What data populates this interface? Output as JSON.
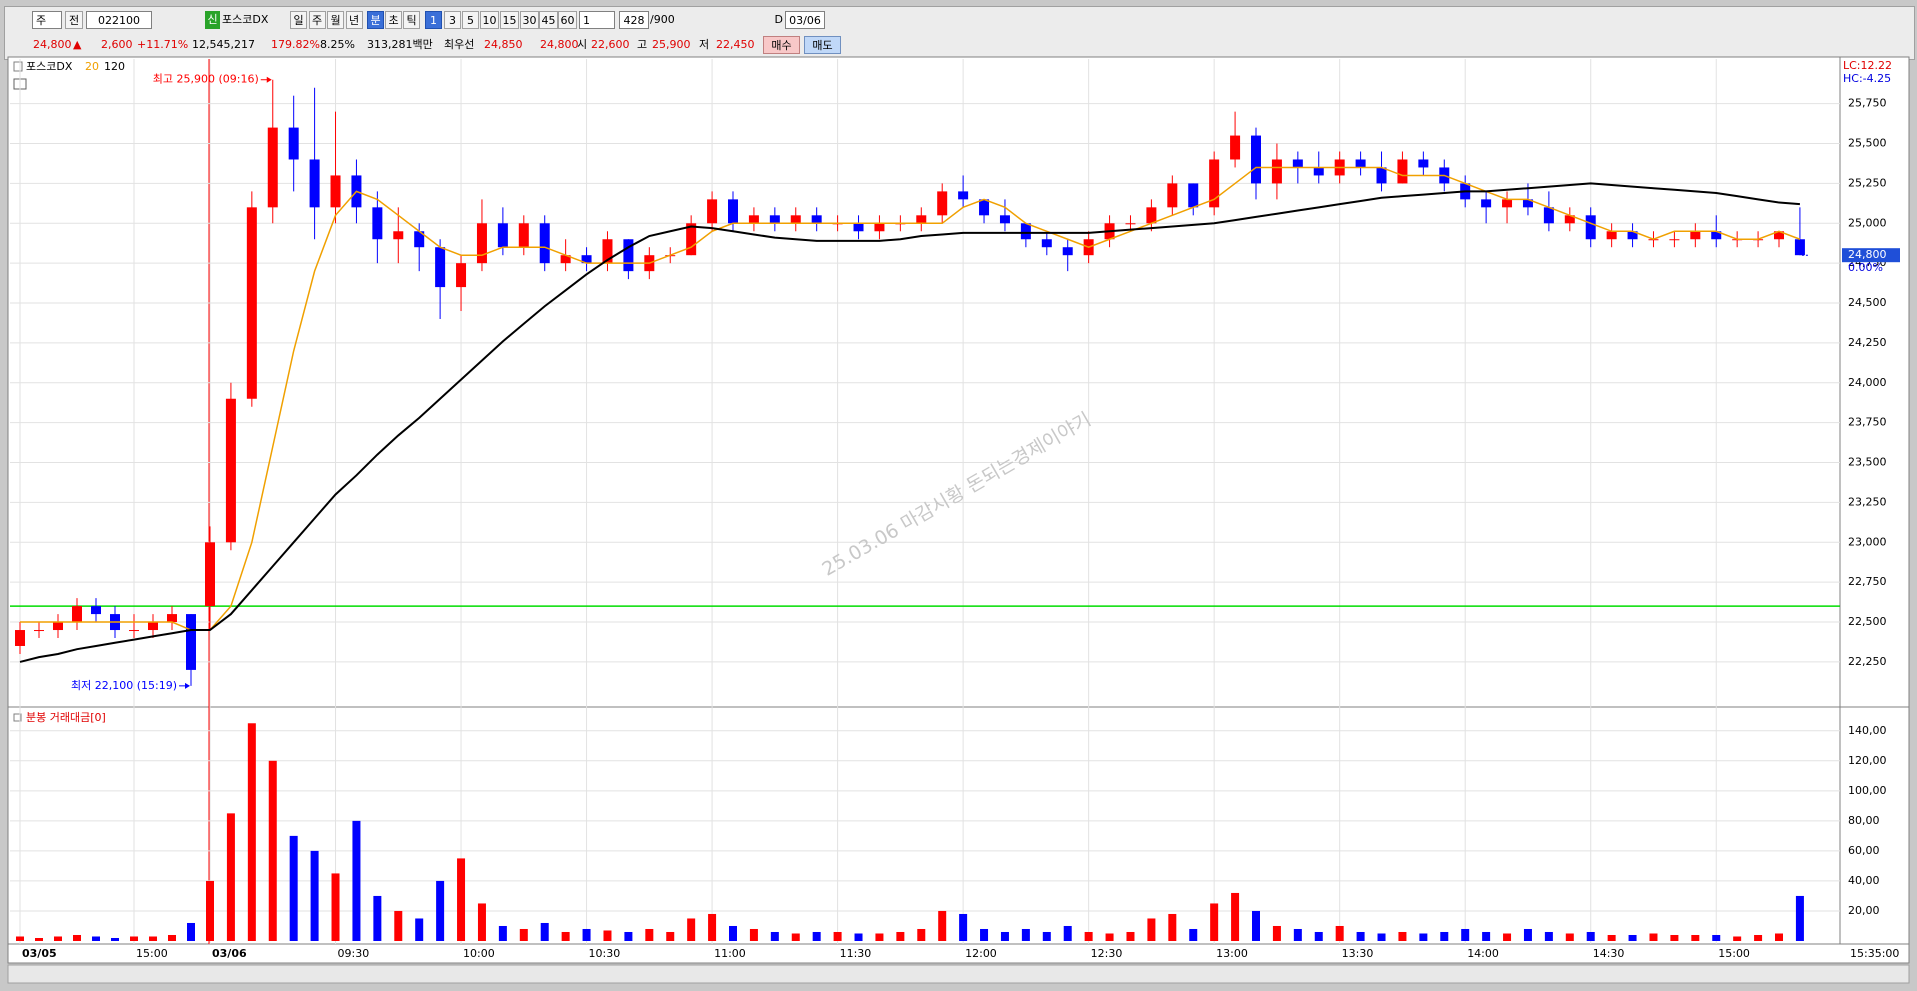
{
  "toolbar": {
    "period_select": "주",
    "view": "전",
    "code": "022100",
    "badge": "신",
    "name": "포스코DX",
    "periods": [
      "일",
      "주",
      "월",
      "년"
    ],
    "units": [
      "분",
      "초",
      "틱"
    ],
    "intervals": [
      "1",
      "3",
      "5",
      "10",
      "15",
      "30",
      "45",
      "60"
    ],
    "multiplier": "1",
    "count": "428",
    "max_count": "/900",
    "date_check": "D",
    "date": "03/06"
  },
  "quote": {
    "price": "24,800",
    "arrow": "▲",
    "change": "2,600",
    "change_pct": "+11.71%",
    "volume": "12,545,217",
    "volume_ratio": "179.82%",
    "turnover": "8.25%",
    "amount": "313,281백만",
    "best_label": "최우선",
    "ask": "24,850",
    "bid": "24,800",
    "open_label": "시",
    "open": "22,600",
    "high_label": "고",
    "high": "25,900",
    "low_label": "저",
    "low": "22,450",
    "buy": "매수",
    "sell": "매도"
  },
  "chart_data": [
    {
      "type": "candlestick",
      "title": "포스코DX",
      "up_color": "#ff0000",
      "down_color": "#0000ff",
      "categories": [
        "03/05",
        null,
        null,
        null,
        null,
        null,
        "15:00",
        null,
        null,
        null,
        "03/06",
        null,
        null,
        null,
        null,
        null,
        "09:30",
        null,
        null,
        null,
        null,
        null,
        "10:00",
        null,
        null,
        null,
        null,
        null,
        "10:30",
        null,
        null,
        null,
        null,
        null,
        "11:00",
        null,
        null,
        null,
        null,
        null,
        "11:30",
        null,
        null,
        null,
        null,
        null,
        "12:00",
        null,
        null,
        null,
        null,
        null,
        "12:30",
        null,
        null,
        null,
        null,
        null,
        "13:00",
        null,
        null,
        null,
        null,
        null,
        "13:30",
        null,
        null,
        null,
        null,
        null,
        "14:00",
        null,
        null,
        null,
        null,
        null,
        "14:30",
        null,
        null,
        null,
        null,
        null,
        "15:00",
        null,
        null,
        null,
        null
      ],
      "open": [
        22350,
        22450,
        22450,
        22500,
        22600,
        22550,
        22450,
        22450,
        22500,
        22550,
        22600,
        23000,
        23900,
        25100,
        25600,
        25400,
        25100,
        25300,
        25100,
        24900,
        24950,
        24850,
        24600,
        24750,
        25000,
        24850,
        25000,
        24750,
        24800,
        24750,
        24900,
        24700,
        24800,
        24800,
        25000,
        25150,
        25000,
        25050,
        25000,
        25050,
        25000,
        25000,
        24950,
        25000,
        25000,
        25050,
        25200,
        25150,
        25050,
        25000,
        24900,
        24850,
        24800,
        24900,
        25000,
        25000,
        25100,
        25250,
        25100,
        25400,
        25550,
        25250,
        25400,
        25350,
        25300,
        25400,
        25350,
        25250,
        25400,
        25350,
        25250,
        25150,
        25100,
        25150,
        25100,
        25000,
        25050,
        24900,
        24950,
        24900,
        24900,
        24900,
        24950,
        24900,
        24900,
        24900,
        24900
      ],
      "high": [
        22500,
        22500,
        22550,
        22650,
        22650,
        22600,
        22550,
        22550,
        22600,
        22550,
        23100,
        24000,
        25200,
        25900,
        25800,
        25850,
        25700,
        25400,
        25200,
        25100,
        25000,
        24900,
        24800,
        25150,
        25100,
        25050,
        25050,
        24900,
        24850,
        24950,
        24900,
        24850,
        24850,
        25050,
        25200,
        25200,
        25100,
        25100,
        25100,
        25100,
        25050,
        25050,
        25050,
        25050,
        25100,
        25250,
        25300,
        25150,
        25150,
        25000,
        24950,
        24900,
        24950,
        25050,
        25050,
        25150,
        25300,
        25250,
        25450,
        25700,
        25600,
        25500,
        25450,
        25450,
        25450,
        25450,
        25450,
        25450,
        25450,
        25400,
        25300,
        25200,
        25200,
        25250,
        25200,
        25100,
        25100,
        25000,
        25000,
        24950,
        24950,
        25000,
        25050,
        24950,
        24950,
        24950,
        25100
      ],
      "low": [
        22300,
        22400,
        22400,
        22450,
        22500,
        22400,
        22400,
        22400,
        22450,
        22100,
        22450,
        22950,
        23850,
        25000,
        25200,
        24900,
        25000,
        25000,
        24750,
        24750,
        24700,
        24400,
        24450,
        24700,
        24800,
        24800,
        24700,
        24700,
        24700,
        24700,
        24650,
        24650,
        24750,
        24800,
        24950,
        24950,
        24950,
        24950,
        24950,
        24950,
        24950,
        24900,
        24900,
        24950,
        24950,
        25000,
        25100,
        25000,
        24950,
        24850,
        24800,
        24700,
        24750,
        24850,
        24950,
        24950,
        25050,
        25050,
        25050,
        25350,
        25150,
        25150,
        25250,
        25250,
        25250,
        25300,
        25200,
        25250,
        25300,
        25200,
        25100,
        25000,
        25000,
        25050,
        24950,
        24950,
        24850,
        24850,
        24850,
        24850,
        24850,
        24850,
        24850,
        24850,
        24850,
        24850,
        24800
      ],
      "close": [
        22450,
        22450,
        22500,
        22600,
        22550,
        22450,
        22450,
        22500,
        22550,
        22200,
        23000,
        23900,
        25100,
        25600,
        25400,
        25100,
        25300,
        25100,
        24900,
        24950,
        24850,
        24600,
        24750,
        25000,
        24850,
        25000,
        24750,
        24800,
        24750,
        24900,
        24700,
        24800,
        24800,
        25000,
        25150,
        25000,
        25050,
        25000,
        25050,
        25000,
        25000,
        24950,
        25000,
        25000,
        25050,
        25200,
        25150,
        25050,
        25000,
        24900,
        24850,
        24800,
        24900,
        25000,
        25000,
        25100,
        25250,
        25100,
        25400,
        25550,
        25250,
        25400,
        25350,
        25300,
        25400,
        25350,
        25250,
        25400,
        25350,
        25250,
        25150,
        25100,
        25150,
        25100,
        25000,
        25050,
        24900,
        24950,
        24900,
        24900,
        24900,
        24950,
        24900,
        24900,
        24900,
        24950,
        24800
      ],
      "series": [
        {
          "name": "20",
          "color": "#f0a000",
          "values": [
            22500,
            22500,
            22500,
            22500,
            22500,
            22500,
            22500,
            22500,
            22500,
            22450,
            22450,
            22600,
            23000,
            23600,
            24200,
            24700,
            25050,
            25200,
            25150,
            25050,
            24950,
            24850,
            24800,
            24800,
            24850,
            24850,
            24850,
            24800,
            24750,
            24750,
            24750,
            24750,
            24800,
            24850,
            24950,
            25000,
            25000,
            25000,
            25000,
            25000,
            25000,
            25000,
            25000,
            25000,
            25000,
            25000,
            25100,
            25150,
            25100,
            25000,
            24950,
            24900,
            24850,
            24900,
            24950,
            25000,
            25050,
            25100,
            25150,
            25250,
            25350,
            25350,
            25350,
            25350,
            25350,
            25350,
            25350,
            25300,
            25300,
            25300,
            25250,
            25200,
            25150,
            25150,
            25100,
            25050,
            25000,
            24950,
            24950,
            24900,
            24950,
            24950,
            24950,
            24900,
            24900,
            24950,
            24900
          ]
        },
        {
          "name": "120",
          "color": "#000000",
          "values": [
            22250,
            22280,
            22300,
            22330,
            22350,
            22370,
            22390,
            22410,
            22430,
            22450,
            22450,
            22550,
            22700,
            22850,
            23000,
            23150,
            23300,
            23420,
            23550,
            23670,
            23780,
            23900,
            24020,
            24140,
            24260,
            24370,
            24480,
            24580,
            24680,
            24770,
            24850,
            24920,
            24950,
            24980,
            24970,
            24950,
            24930,
            24910,
            24900,
            24890,
            24890,
            24890,
            24890,
            24900,
            24920,
            24930,
            24940,
            24940,
            24940,
            24940,
            24940,
            24940,
            24940,
            24950,
            24960,
            24970,
            24980,
            24990,
            25000,
            25020,
            25040,
            25060,
            25080,
            25100,
            25120,
            25140,
            25160,
            25170,
            25180,
            25190,
            25200,
            25200,
            25210,
            25220,
            25230,
            25240,
            25250,
            25240,
            25230,
            25220,
            25210,
            25200,
            25190,
            25170,
            25150,
            25130,
            25120
          ]
        }
      ],
      "hline": {
        "value": 22600,
        "color": "#00dd00"
      },
      "annotations": [
        {
          "text": "최고 25,900 (09:16)",
          "value": 25900,
          "kind": "high",
          "color": "#ff0000"
        },
        {
          "text": "최저 22,100 (15:19)",
          "value": 22100,
          "kind": "low",
          "color": "#0000ff"
        }
      ],
      "lc": "LC:12.22",
      "hc": "HC:-4.25",
      "current": {
        "value": 24800,
        "label": "24,800"
      },
      "change_label": "0.00%",
      "watermark": "25.03.06 마감시황 돈되는경제이야기",
      "ylim": [
        21980,
        26030
      ],
      "yticks": [
        {
          "value": 22250,
          "label": "22,250"
        },
        {
          "value": 22500,
          "label": "22,500"
        },
        {
          "value": 22750,
          "label": "22,750"
        },
        {
          "value": 23000,
          "label": "23,000"
        },
        {
          "value": 23250,
          "label": "23,250"
        },
        {
          "value": 23500,
          "label": "23,500"
        },
        {
          "value": 23750,
          "label": "23,750"
        },
        {
          "value": 24000,
          "label": "24,000"
        },
        {
          "value": 24250,
          "label": "24,250"
        },
        {
          "value": 24500,
          "label": "24,500"
        },
        {
          "value": 24750,
          "label": "24,750"
        },
        {
          "value": 25000,
          "label": "25,000"
        },
        {
          "value": 25250,
          "label": "25,250"
        },
        {
          "value": 25500,
          "label": "25,500"
        },
        {
          "value": 25750,
          "label": "25,750"
        }
      ],
      "grid": true
    },
    {
      "type": "bar",
      "title": "분봉 거래대금[0]",
      "values": [
        3,
        2,
        3,
        4,
        3,
        2,
        3,
        3,
        4,
        12,
        40,
        85,
        145,
        120,
        70,
        60,
        45,
        80,
        30,
        20,
        15,
        40,
        55,
        25,
        10,
        8,
        12,
        6,
        8,
        7,
        6,
        8,
        6,
        15,
        18,
        10,
        8,
        6,
        5,
        6,
        6,
        5,
        5,
        6,
        8,
        20,
        18,
        8,
        6,
        8,
        6,
        10,
        6,
        5,
        6,
        15,
        18,
        8,
        25,
        32,
        20,
        10,
        8,
        6,
        10,
        6,
        5,
        6,
        5,
        6,
        8,
        6,
        5,
        8,
        6,
        5,
        6,
        4,
        4,
        5,
        4,
        4,
        4,
        3,
        4,
        5,
        30
      ],
      "ylim": [
        0,
        154.5
      ],
      "yticks": [
        {
          "value": 20,
          "label": "20,00"
        },
        {
          "value": 40,
          "label": "40,00"
        },
        {
          "value": 60,
          "label": "60,00"
        },
        {
          "value": 80,
          "label": "80,00"
        },
        {
          "value": 100,
          "label": "100,00"
        },
        {
          "value": 120,
          "label": "120,00"
        },
        {
          "value": 140,
          "label": "140,00"
        }
      ],
      "grid": true
    }
  ],
  "footer_time": "15:35:00"
}
